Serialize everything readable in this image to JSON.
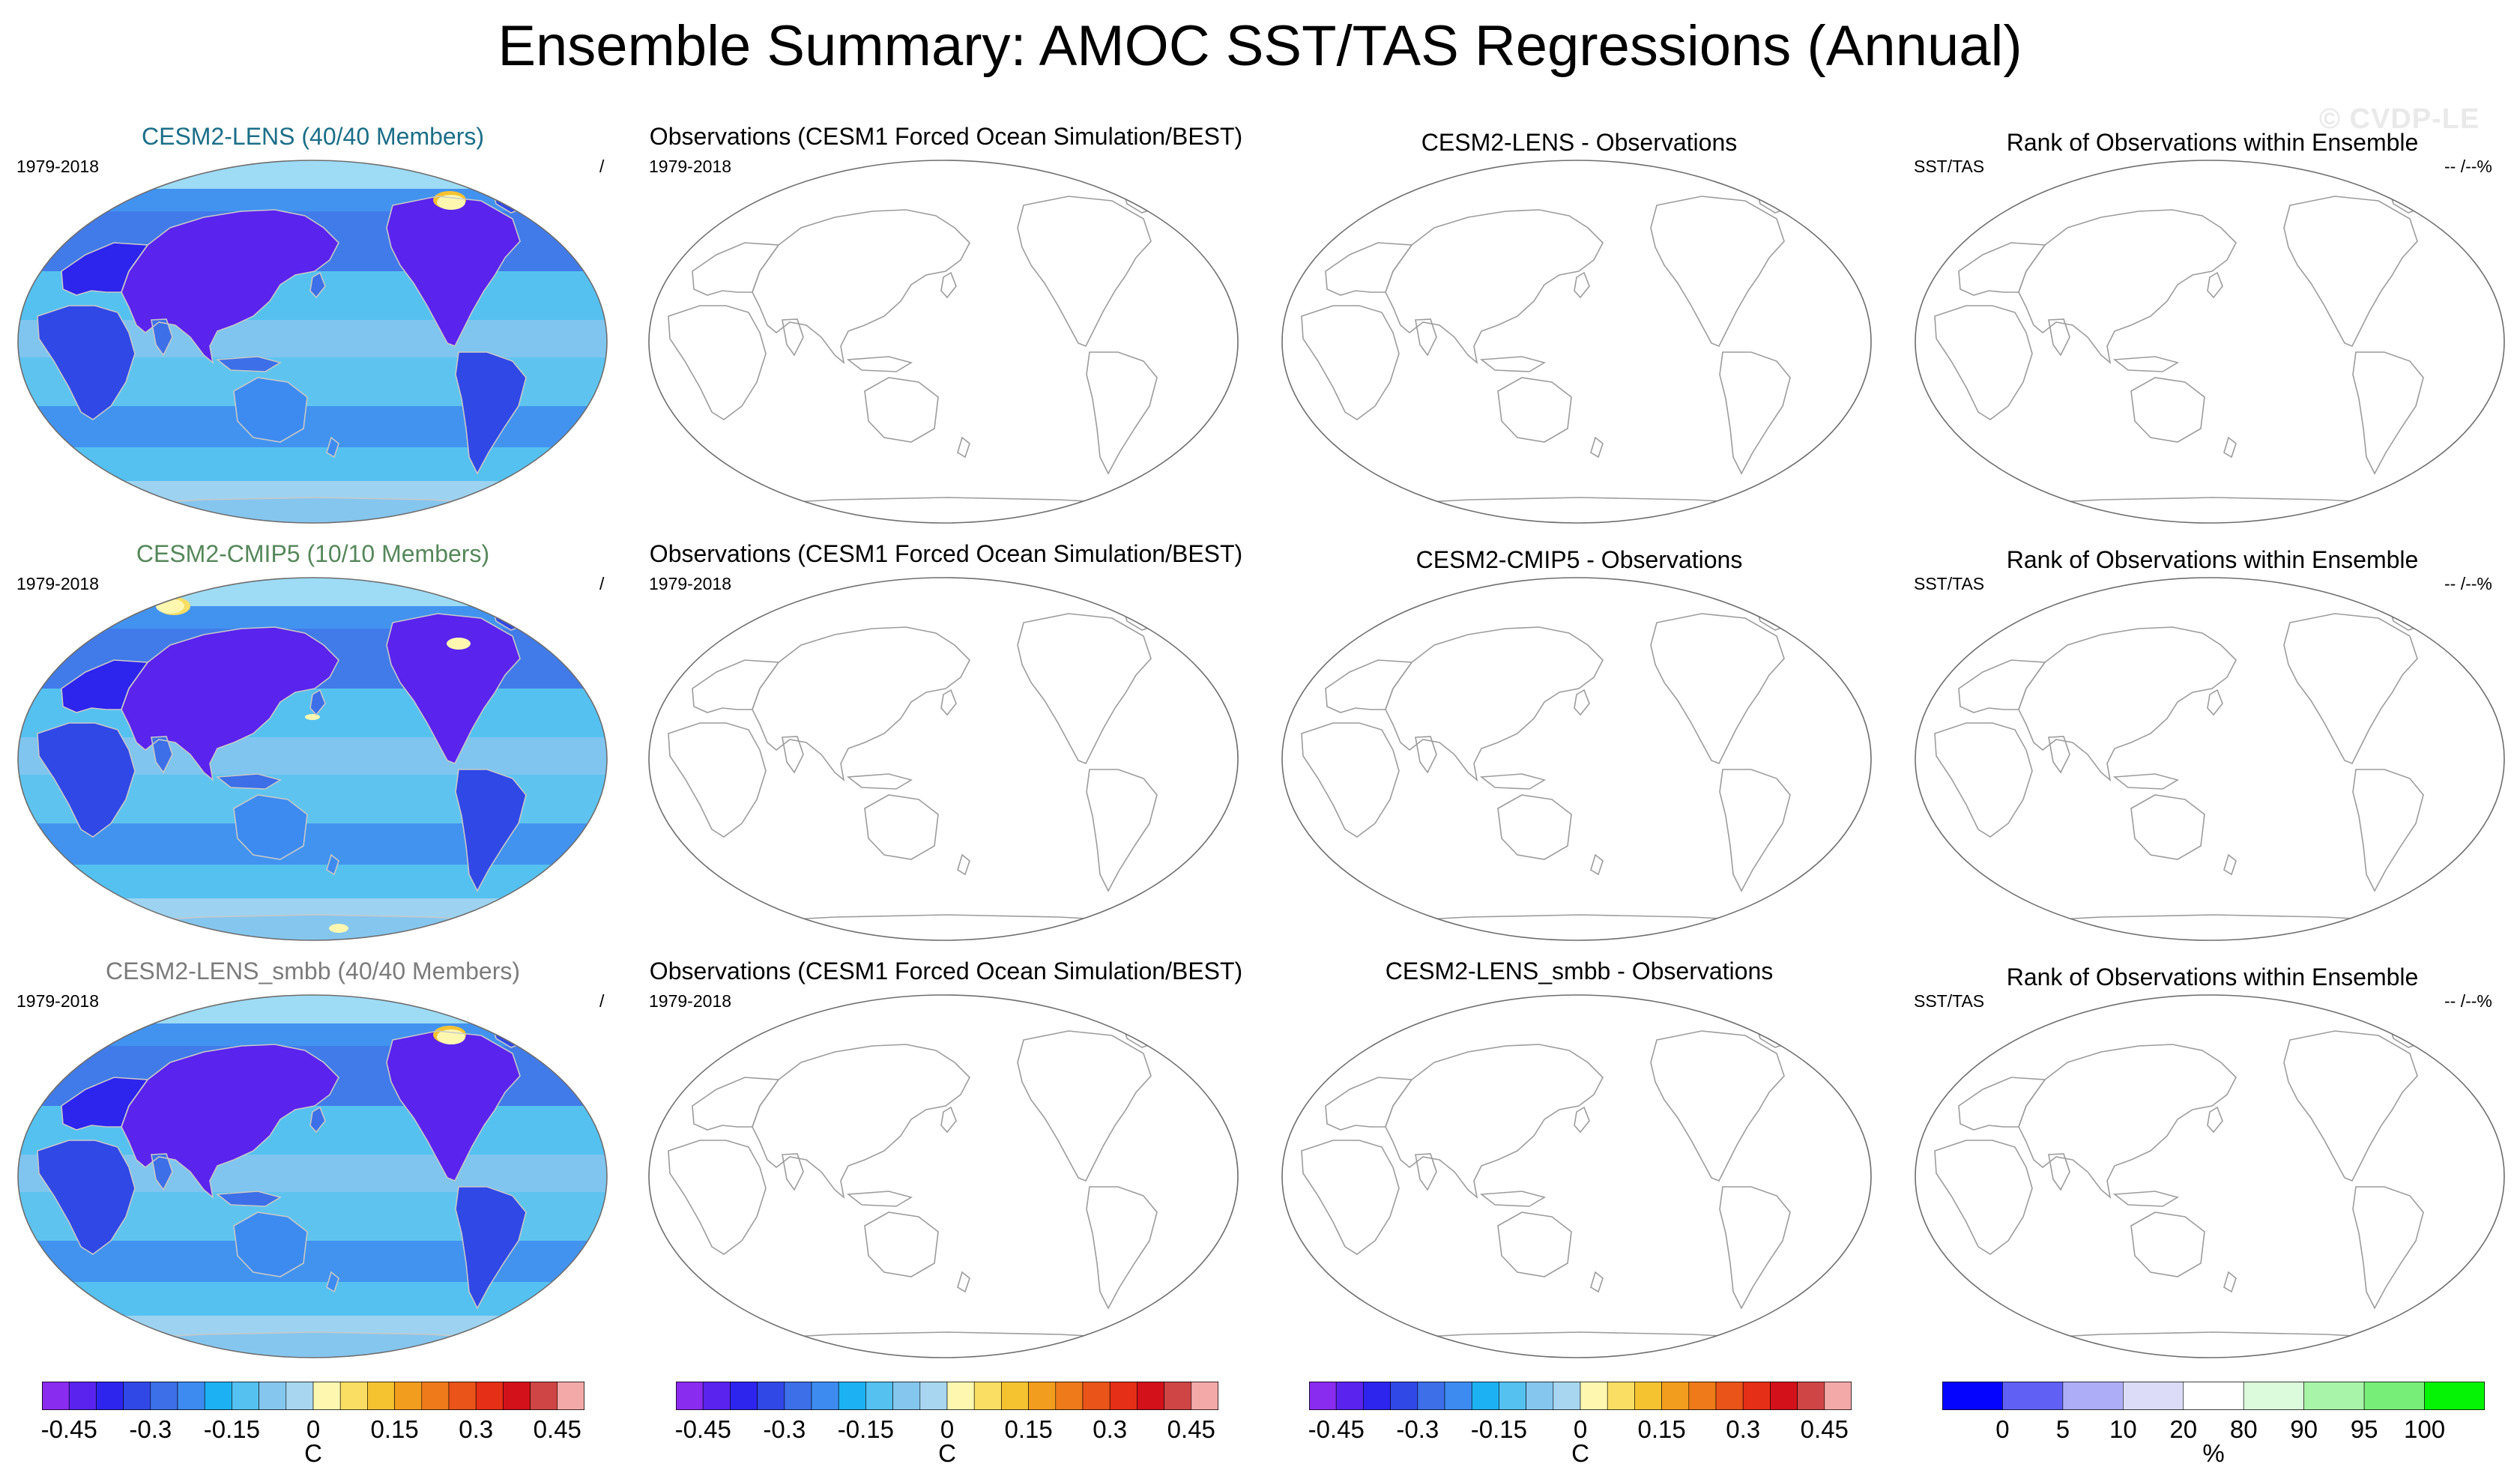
{
  "title": "Ensemble Summary: AMOC SST/TAS Regressions (Annual)",
  "watermark": "© CVDP-LE",
  "colors": {
    "diverging": [
      "#8a2bf0",
      "#5a23ee",
      "#2d24ee",
      "#3048e6",
      "#3c6fe8",
      "#3d8bf0",
      "#1cb1f2",
      "#54c1f1",
      "#85c6ef",
      "#a8d6f0",
      "#fdf7b0",
      "#f9de63",
      "#f5c230",
      "#f39d1e",
      "#ef7a1a",
      "#ea5419",
      "#e52f16",
      "#d3111a",
      "#cf4545",
      "#f4a9a9"
    ],
    "rank": [
      "#0505ff",
      "#6060f5",
      "#adadf7",
      "#dcdcf8",
      "#ffffff",
      "#dcfadc",
      "#a8f4a8",
      "#77ee77",
      "#05f305"
    ],
    "coast": "#9c9c9c",
    "sea_ice": "#a9dff6",
    "base_ocean": "#5ec4ef"
  },
  "rows": [
    {
      "model": {
        "title": "CESM2-LENS (40/40 Members)",
        "title_color": "#1b6e88",
        "left": "1979-2018",
        "right": "/"
      },
      "obs": {
        "title": "Observations (CESM1 Forced Ocean Simulation/BEST)",
        "left": "1979-2018"
      },
      "diff": {
        "title": "CESM2-LENS - Observations"
      },
      "rank": {
        "title": "Rank of Observations within Ensemble",
        "left": "SST/TAS",
        "right": "-- /--%"
      }
    },
    {
      "model": {
        "title": "CESM2-CMIP5 (10/10 Members)",
        "title_color": "#55875a",
        "left": "1979-2018",
        "right": "/"
      },
      "obs": {
        "title": "Observations (CESM1 Forced Ocean Simulation/BEST)",
        "left": "1979-2018"
      },
      "diff": {
        "title": "CESM2-CMIP5 - Observations"
      },
      "rank": {
        "title": "Rank of Observations within Ensemble",
        "left": "SST/TAS",
        "right": "-- /--%"
      }
    },
    {
      "model": {
        "title": "CESM2-LENS_smbb (40/40 Members)",
        "title_color": "#7c7c7c",
        "left": "1979-2018",
        "right": "/"
      },
      "obs": {
        "title": "Observations (CESM1 Forced Ocean Simulation/BEST)",
        "left": "1979-2018"
      },
      "diff": {
        "title": "CESM2-LENS_smbb - Observations"
      },
      "rank": {
        "title": "Rank of Observations within Ensemble",
        "left": "SST/TAS",
        "right": "-- /--%"
      }
    }
  ],
  "colorbars": [
    {
      "ticks": [
        "-0.45",
        "-0.3",
        "-0.15",
        "0",
        "0.15",
        "0.3",
        "0.45"
      ],
      "unit": "C"
    },
    {
      "ticks": [
        "-0.45",
        "-0.3",
        "-0.15",
        "0",
        "0.15",
        "0.3",
        "0.45"
      ],
      "unit": "C"
    },
    {
      "ticks": [
        "-0.45",
        "-0.3",
        "-0.15",
        "0",
        "0.15",
        "0.3",
        "0.45"
      ],
      "unit": "C"
    },
    {
      "ticks": [
        "0",
        "5",
        "10",
        "20",
        "80",
        "90",
        "95",
        "100"
      ],
      "unit": "%"
    }
  ],
  "chart_data": {
    "type": "heatmap",
    "title": "Ensemble Summary: AMOC SST/TAS Regressions (Annual)",
    "period": "1979-2018",
    "units": "C",
    "colorbar_range": [
      -0.5,
      0.5
    ],
    "colorbar_levels": [
      -0.45,
      -0.4,
      -0.35,
      -0.3,
      -0.25,
      -0.2,
      -0.15,
      -0.1,
      -0.05,
      0,
      0.05,
      0.1,
      0.15,
      0.2,
      0.25,
      0.3,
      0.35,
      0.4,
      0.45
    ],
    "rank_levels_percent": [
      0,
      5,
      10,
      20,
      80,
      90,
      95,
      100
    ],
    "panels": [
      {
        "name": "CESM2-LENS (40/40 Members)",
        "filled": true
      },
      {
        "name": "Observations (CESM1 Forced Ocean Simulation/BEST)",
        "filled": false
      },
      {
        "name": "CESM2-LENS - Observations",
        "filled": false
      },
      {
        "name": "Rank of Observations within Ensemble",
        "filled": false
      },
      {
        "name": "CESM2-CMIP5 (10/10 Members)",
        "filled": true
      },
      {
        "name": "CESM2-CMIP5 - Observations",
        "filled": false
      },
      {
        "name": "CESM2-LENS_smbb (40/40 Members)",
        "filled": true
      },
      {
        "name": "CESM2-LENS_smbb - Observations",
        "filled": false
      }
    ]
  }
}
